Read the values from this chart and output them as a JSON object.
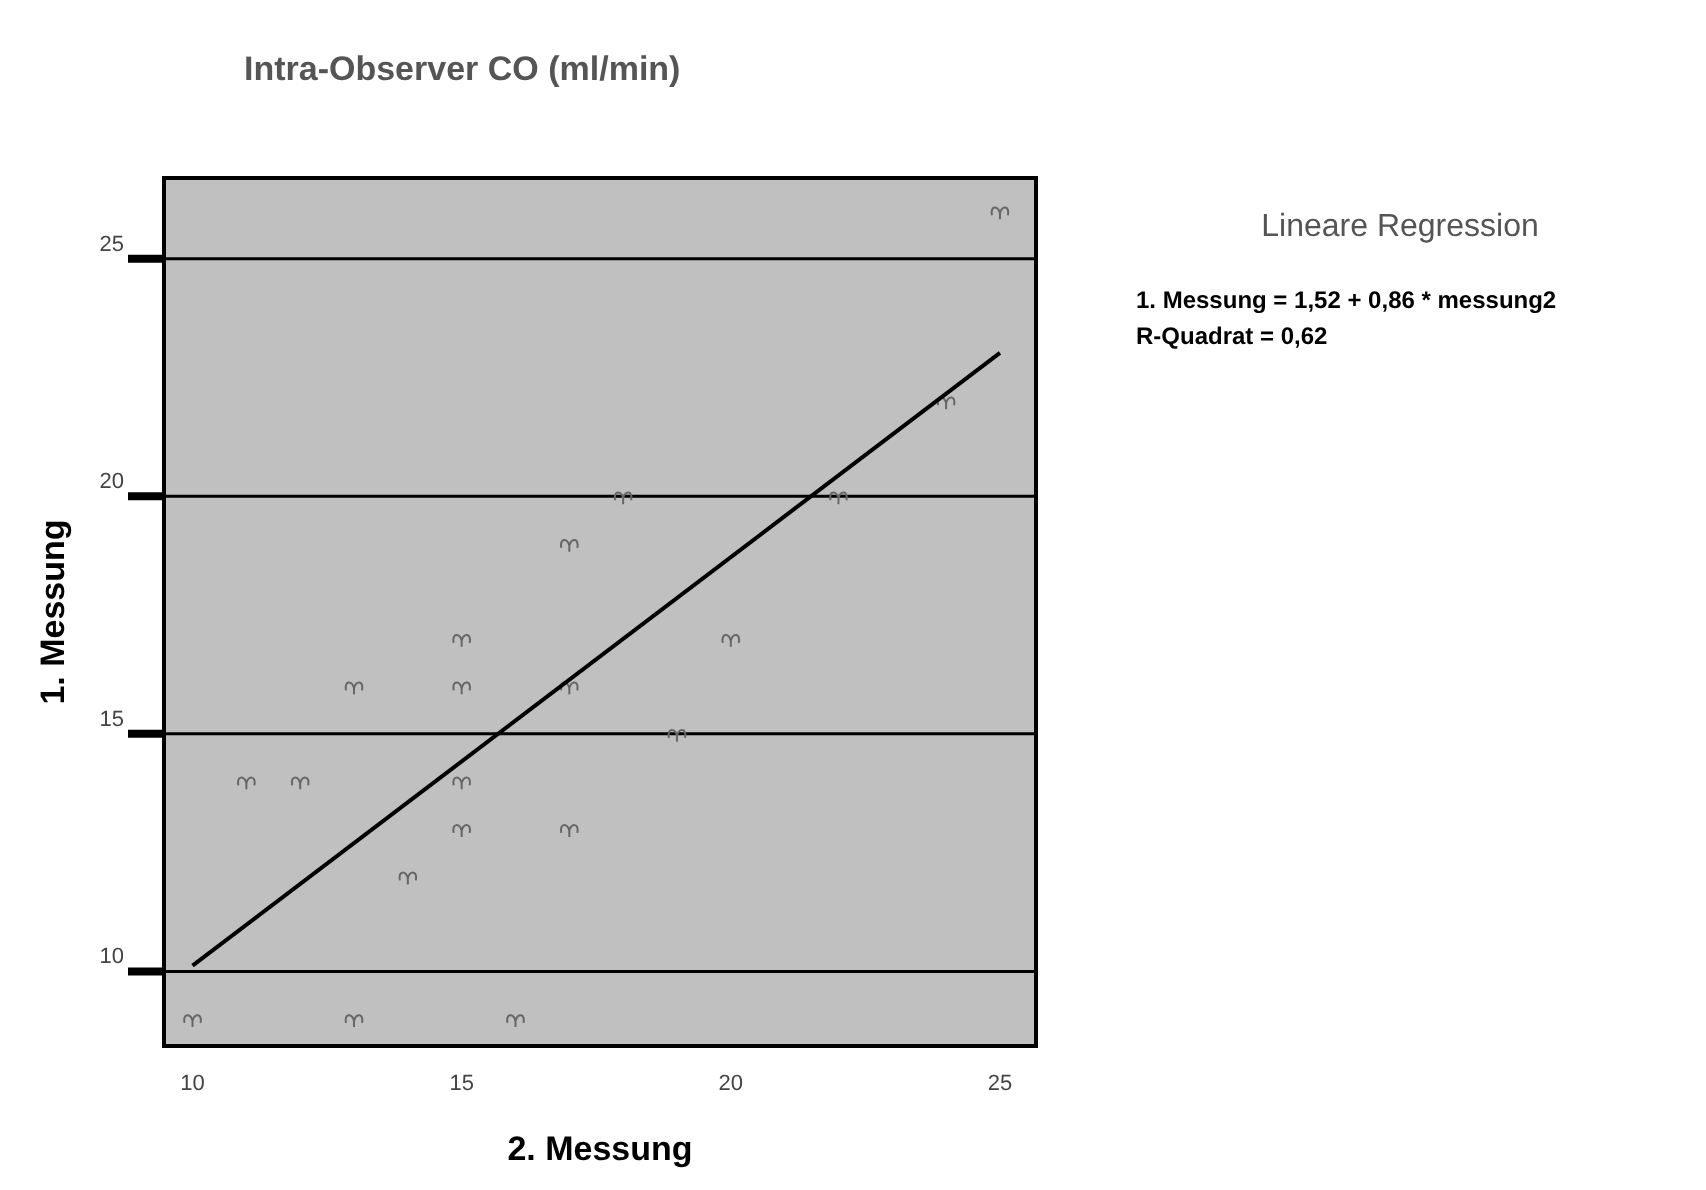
{
  "chart_data": {
    "type": "scatter",
    "title": "Intra-Observer CO (ml/min)",
    "xlabel": "2. Messung",
    "ylabel": "1. Messung",
    "xlim": [
      9.47,
      25.67
    ],
    "ylim": [
      8.43,
      26.7
    ],
    "xticks": [
      10,
      15,
      20,
      25
    ],
    "yticks": [
      10,
      15,
      20,
      25
    ],
    "grid": "y",
    "series": [
      {
        "color": "#666666",
        "x": [
          10,
          13,
          16,
          11,
          12,
          15,
          14,
          15,
          17,
          13,
          15,
          17,
          15,
          20,
          17,
          18,
          22,
          19,
          24,
          25
        ],
        "values": [
          9,
          9,
          9,
          14,
          14,
          14,
          12,
          13,
          13,
          16,
          16,
          16,
          17,
          17,
          19,
          20,
          20,
          15,
          22,
          26
        ]
      },
      {
        "type": "line",
        "color": "#000000",
        "x": [
          10,
          25
        ],
        "values": [
          10.12,
          23.02
        ]
      }
    ],
    "annotations": [
      "Lineare Regression",
      "1. Messung = 1,52 + 0,86 * messung2",
      "R-Quadrat = 0,62"
    ]
  }
}
